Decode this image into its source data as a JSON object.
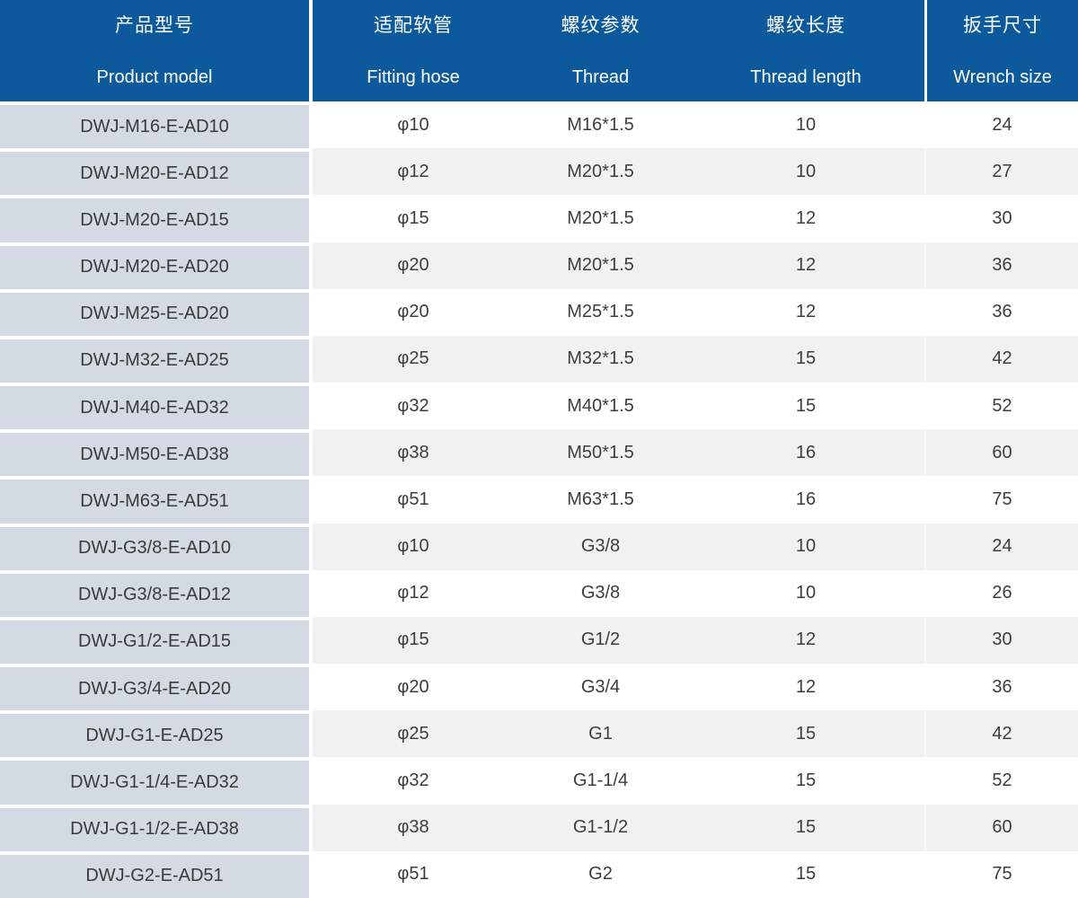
{
  "table": {
    "columns": [
      {
        "zh": "产品型号",
        "en": "Product model"
      },
      {
        "zh": "适配软管",
        "en": "Fitting hose"
      },
      {
        "zh": "螺纹参数",
        "en": "Thread"
      },
      {
        "zh": "螺纹长度",
        "en": "Thread length"
      },
      {
        "zh": "扳手尺寸",
        "en": "Wrench size"
      }
    ],
    "rows": [
      {
        "product_model": "DWJ-M16-E-AD10",
        "fitting_hose": "φ10",
        "thread": "M16*1.5",
        "thread_length": "10",
        "wrench_size": "24"
      },
      {
        "product_model": "DWJ-M20-E-AD12",
        "fitting_hose": "φ12",
        "thread": "M20*1.5",
        "thread_length": "10",
        "wrench_size": "27"
      },
      {
        "product_model": "DWJ-M20-E-AD15",
        "fitting_hose": "φ15",
        "thread": "M20*1.5",
        "thread_length": "12",
        "wrench_size": "30"
      },
      {
        "product_model": "DWJ-M20-E-AD20",
        "fitting_hose": "φ20",
        "thread": "M20*1.5",
        "thread_length": "12",
        "wrench_size": "36"
      },
      {
        "product_model": "DWJ-M25-E-AD20",
        "fitting_hose": "φ20",
        "thread": "M25*1.5",
        "thread_length": "12",
        "wrench_size": "36"
      },
      {
        "product_model": "DWJ-M32-E-AD25",
        "fitting_hose": "φ25",
        "thread": "M32*1.5",
        "thread_length": "15",
        "wrench_size": "42"
      },
      {
        "product_model": "DWJ-M40-E-AD32",
        "fitting_hose": "φ32",
        "thread": "M40*1.5",
        "thread_length": "15",
        "wrench_size": "52"
      },
      {
        "product_model": "DWJ-M50-E-AD38",
        "fitting_hose": "φ38",
        "thread": "M50*1.5",
        "thread_length": "16",
        "wrench_size": "60"
      },
      {
        "product_model": "DWJ-M63-E-AD51",
        "fitting_hose": "φ51",
        "thread": "M63*1.5",
        "thread_length": "16",
        "wrench_size": "75"
      },
      {
        "product_model": "DWJ-G3/8-E-AD10",
        "fitting_hose": "φ10",
        "thread": "G3/8",
        "thread_length": "10",
        "wrench_size": "24"
      },
      {
        "product_model": "DWJ-G3/8-E-AD12",
        "fitting_hose": "φ12",
        "thread": "G3/8",
        "thread_length": "10",
        "wrench_size": "26"
      },
      {
        "product_model": "DWJ-G1/2-E-AD15",
        "fitting_hose": "φ15",
        "thread": "G1/2",
        "thread_length": "12",
        "wrench_size": "30"
      },
      {
        "product_model": "DWJ-G3/4-E-AD20",
        "fitting_hose": "φ20",
        "thread": "G3/4",
        "thread_length": "12",
        "wrench_size": "36"
      },
      {
        "product_model": "DWJ-G1-E-AD25",
        "fitting_hose": "φ25",
        "thread": "G1",
        "thread_length": "15",
        "wrench_size": "42"
      },
      {
        "product_model": "DWJ-G1-1/4-E-AD32",
        "fitting_hose": "φ32",
        "thread": "G1-1/4",
        "thread_length": "15",
        "wrench_size": "52"
      },
      {
        "product_model": "DWJ-G1-1/2-E-AD38",
        "fitting_hose": "φ38",
        "thread": "G1-1/2",
        "thread_length": "15",
        "wrench_size": "60"
      },
      {
        "product_model": "DWJ-G2-E-AD51",
        "fitting_hose": "φ51",
        "thread": "G2",
        "thread_length": "15",
        "wrench_size": "75"
      }
    ]
  },
  "colors": {
    "header_bg": "#0c599b",
    "header_text": "#ffffff",
    "model_cell_bg": "#d3dae3",
    "zebra_gray": "#f1f1f1",
    "zebra_white": "#ffffff",
    "cell_text": "#3d3d3d"
  }
}
